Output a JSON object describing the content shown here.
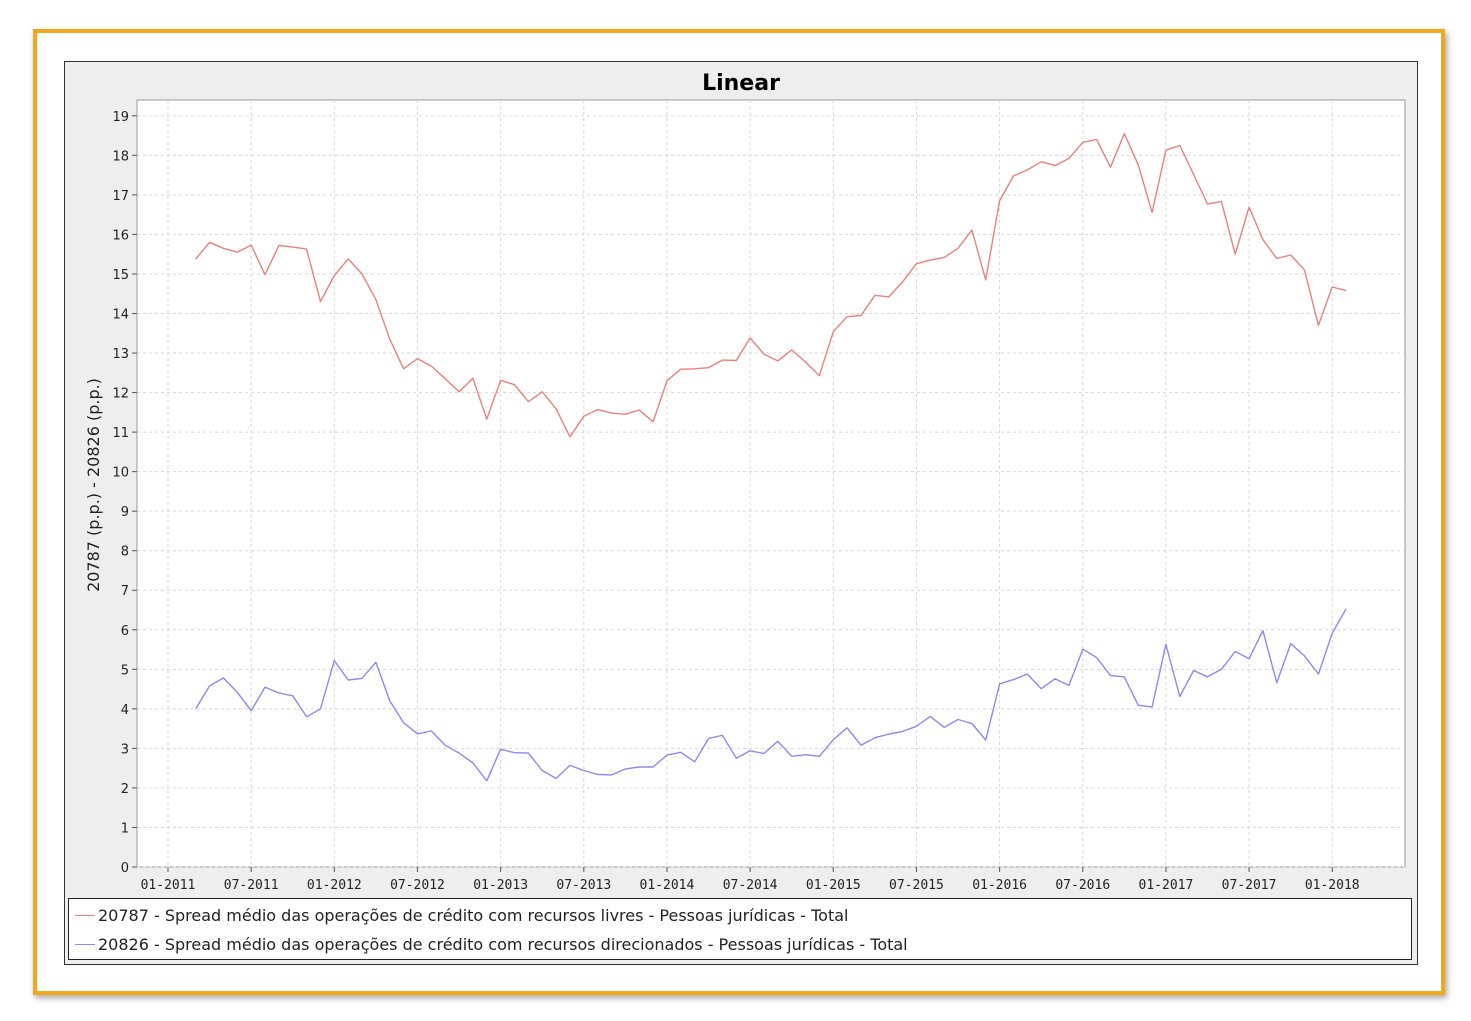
{
  "chart_data": {
    "type": "line",
    "title": "Linear",
    "ylabel": "20787 (p.p.) - 20826 (p.p.)",
    "xlabel": "",
    "ylim": [
      0,
      19.4
    ],
    "yticks": [
      0,
      1,
      2,
      3,
      4,
      5,
      6,
      7,
      8,
      9,
      10,
      11,
      12,
      13,
      14,
      15,
      16,
      17,
      18,
      19
    ],
    "xticks": [
      "01-2011",
      "07-2011",
      "01-2012",
      "07-2012",
      "01-2013",
      "07-2013",
      "01-2014",
      "07-2014",
      "01-2015",
      "07-2015",
      "01-2016",
      "07-2016",
      "01-2017",
      "07-2017",
      "01-2018"
    ],
    "grid": true,
    "legend_position": "bottom",
    "start_month": "2011-03",
    "series": [
      {
        "name": "20787 - Spread médio das operações de crédito com recursos livres - Pessoas jurídicas - Total",
        "color": "#e8827a",
        "values": [
          15.38,
          15.8,
          15.65,
          15.55,
          15.73,
          14.98,
          15.72,
          15.68,
          15.63,
          14.3,
          14.96,
          15.38,
          15.0,
          14.35,
          13.35,
          12.6,
          12.86,
          12.67,
          12.35,
          12.02,
          12.36,
          11.33,
          12.31,
          12.2,
          11.77,
          12.02,
          11.59,
          10.88,
          11.4,
          11.57,
          11.48,
          11.45,
          11.56,
          11.26,
          12.3,
          12.59,
          12.6,
          12.63,
          12.82,
          12.81,
          13.38,
          12.97,
          12.8,
          13.08,
          12.77,
          12.43,
          13.54,
          13.92,
          13.95,
          14.46,
          14.42,
          14.8,
          15.26,
          15.35,
          15.42,
          15.65,
          16.11,
          14.85,
          16.85,
          17.48,
          17.63,
          17.84,
          17.74,
          17.92,
          18.33,
          18.4,
          17.7,
          18.55,
          17.76,
          16.56,
          18.13,
          18.25,
          17.52,
          16.77,
          16.83,
          15.5,
          16.69,
          15.87,
          15.39,
          15.48,
          15.1,
          13.7,
          14.67,
          14.58
        ]
      },
      {
        "name": "20826 - Spread médio das operações de crédito com recursos direcionados - Pessoas jurídicas - Total",
        "color": "#8a8af0",
        "values": [
          4.0,
          4.58,
          4.78,
          4.42,
          3.95,
          4.55,
          4.4,
          4.33,
          3.8,
          4.0,
          5.22,
          4.73,
          4.77,
          5.18,
          4.2,
          3.65,
          3.37,
          3.44,
          3.08,
          2.88,
          2.63,
          2.18,
          2.98,
          2.89,
          2.88,
          2.44,
          2.24,
          2.57,
          2.44,
          2.34,
          2.33,
          2.48,
          2.53,
          2.53,
          2.83,
          2.9,
          2.66,
          3.25,
          3.33,
          2.75,
          2.94,
          2.87,
          3.18,
          2.8,
          2.84,
          2.8,
          3.22,
          3.52,
          3.08,
          3.27,
          3.36,
          3.43,
          3.56,
          3.81,
          3.53,
          3.73,
          3.63,
          3.21,
          4.63,
          4.74,
          4.88,
          4.51,
          4.76,
          4.59,
          5.51,
          5.3,
          4.84,
          4.81,
          4.09,
          4.05,
          5.63,
          4.31,
          4.97,
          4.81,
          5.0,
          5.45,
          5.27,
          5.98,
          4.66,
          5.65,
          5.34,
          4.88,
          5.91,
          6.53
        ]
      }
    ]
  }
}
